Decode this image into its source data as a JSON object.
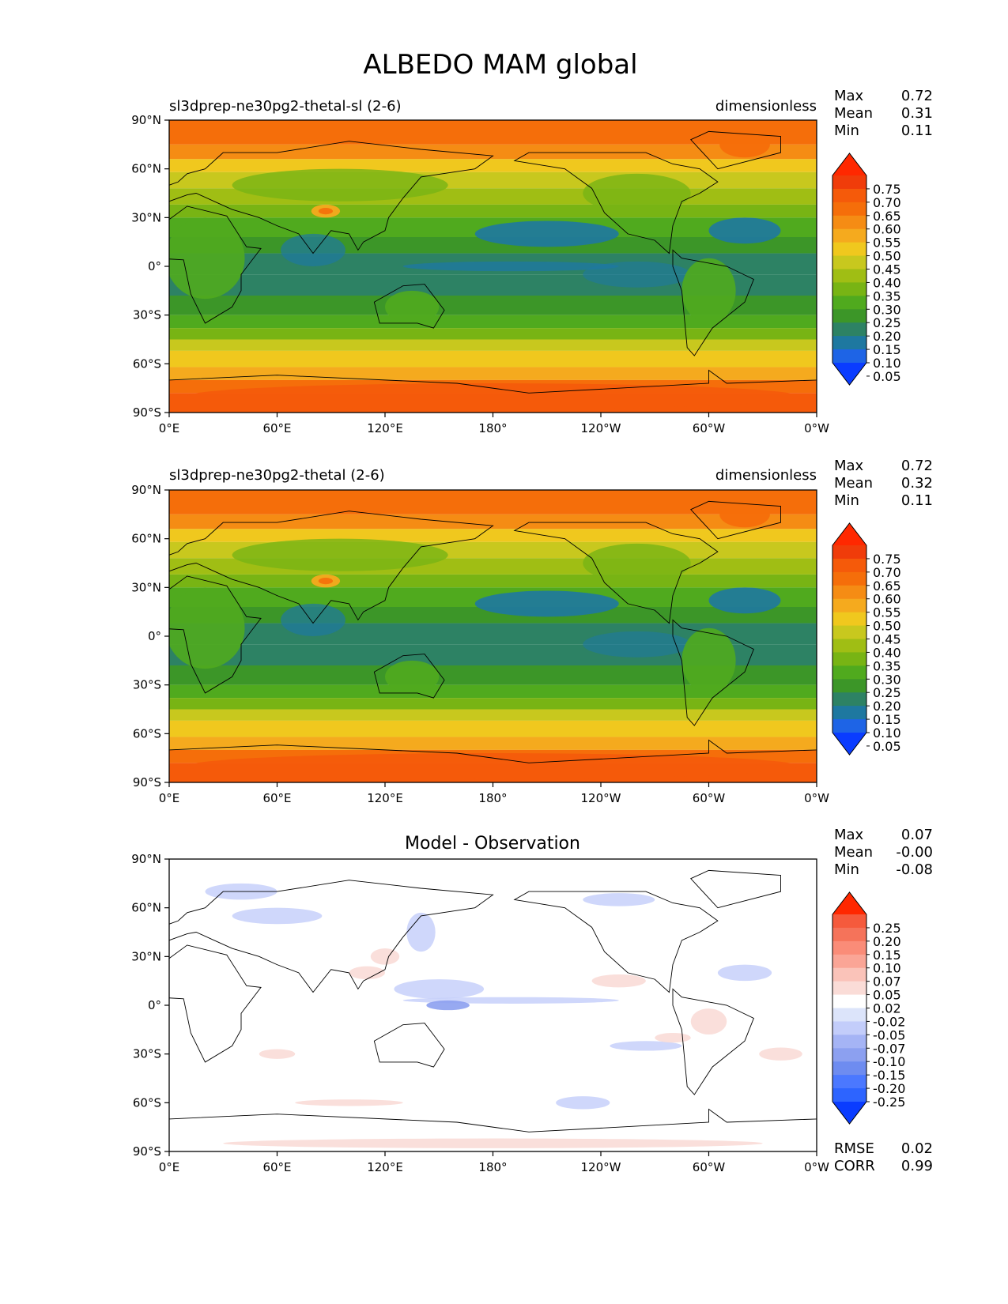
{
  "figure": {
    "title": "ALBEDO MAM global"
  },
  "colors": {
    "abs_levels": [
      "#0a3cff",
      "#1e64e6",
      "#1e78a0",
      "#2d8264",
      "#3c9628",
      "#50aa1e",
      "#78b414",
      "#a0be14",
      "#c8c81e",
      "#f0c81e",
      "#f5aa1e",
      "#f58c14",
      "#f56e0a",
      "#f55a0a",
      "#f03c0a",
      "#ff2800"
    ],
    "diff_levels": [
      "#0a3cff",
      "#2d64ff",
      "#4b78ff",
      "#6e8cf0",
      "#8ca0f0",
      "#a5b4f5",
      "#c3cdfa",
      "#dce4fa",
      "#ffffff",
      "#fadcd7",
      "#fac3b9",
      "#faa596",
      "#fa8c78",
      "#f5735a",
      "#f55a3c",
      "#ff2800"
    ]
  },
  "chart_data": [
    {
      "type": "heatmap",
      "panel": "test",
      "left_title": "sl3dprep-ne30pg2-thetal-sl (2-6)",
      "right_title": "dimensionless",
      "stats": [
        {
          "label": "Max",
          "value": "0.72"
        },
        {
          "label": "Mean",
          "value": "0.31"
        },
        {
          "label": "Min",
          "value": "0.11"
        }
      ],
      "colorbar_levels": [
        "0.75",
        "0.70",
        "0.65",
        "0.60",
        "0.55",
        "0.50",
        "0.45",
        "0.40",
        "0.35",
        "0.30",
        "0.25",
        "0.20",
        "0.15",
        "0.10",
        "0.05"
      ],
      "xticks": [
        "0°E",
        "60°E",
        "120°E",
        "180°",
        "120°W",
        "60°W",
        "0°W"
      ],
      "yticks": [
        "90°N",
        "60°N",
        "30°N",
        "0°",
        "30°S",
        "60°S",
        "90°S"
      ],
      "xlim": [
        0,
        360
      ],
      "ylim": [
        -90,
        90
      ]
    },
    {
      "type": "heatmap",
      "panel": "reference",
      "left_title": "sl3dprep-ne30pg2-thetal (2-6)",
      "right_title": "dimensionless",
      "stats": [
        {
          "label": "Max",
          "value": "0.72"
        },
        {
          "label": "Mean",
          "value": "0.32"
        },
        {
          "label": "Min",
          "value": "0.11"
        }
      ],
      "colorbar_levels": [
        "0.75",
        "0.70",
        "0.65",
        "0.60",
        "0.55",
        "0.50",
        "0.45",
        "0.40",
        "0.35",
        "0.30",
        "0.25",
        "0.20",
        "0.15",
        "0.10",
        "0.05"
      ],
      "xticks": [
        "0°E",
        "60°E",
        "120°E",
        "180°",
        "120°W",
        "60°W",
        "0°W"
      ],
      "yticks": [
        "90°N",
        "60°N",
        "30°N",
        "0°",
        "30°S",
        "60°S",
        "90°S"
      ],
      "xlim": [
        0,
        360
      ],
      "ylim": [
        -90,
        90
      ]
    },
    {
      "type": "heatmap",
      "panel": "difference",
      "center_title": "Model - Observation",
      "stats": [
        {
          "label": "Max",
          "value": "0.07"
        },
        {
          "label": "Mean",
          "value": "-0.00"
        },
        {
          "label": "Min",
          "value": "-0.08"
        }
      ],
      "colorbar_levels": [
        "0.25",
        "0.20",
        "0.15",
        "0.10",
        "0.07",
        "0.05",
        "0.02",
        "-0.02",
        "-0.05",
        "-0.07",
        "-0.10",
        "-0.15",
        "-0.20",
        "-0.25"
      ],
      "metrics": [
        {
          "label": "RMSE",
          "value": "0.02"
        },
        {
          "label": "CORR",
          "value": "0.99"
        }
      ],
      "xticks": [
        "0°E",
        "60°E",
        "120°E",
        "180°",
        "120°W",
        "60°W",
        "0°W"
      ],
      "yticks": [
        "90°N",
        "60°N",
        "30°N",
        "0°",
        "30°S",
        "60°S",
        "90°S"
      ],
      "xlim": [
        0,
        360
      ],
      "ylim": [
        -90,
        90
      ]
    }
  ]
}
